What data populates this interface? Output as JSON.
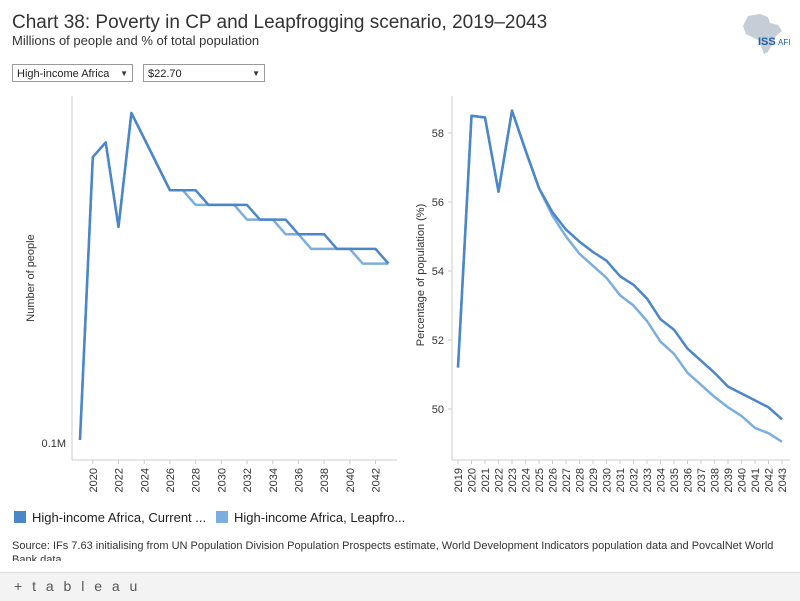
{
  "header": {
    "title": "Chart 38: Poverty in CP and Leapfrogging scenario, 2019–2043",
    "subtitle": "Millions of people and % of total population"
  },
  "logo": {
    "text": "ISS",
    "suffix": "AFI",
    "icon": "africa-map-icon"
  },
  "filters": {
    "region": {
      "value": "High-income Africa",
      "icon": "chevron-down-icon"
    },
    "threshold": {
      "value": "$22.70",
      "icon": "chevron-down-icon"
    }
  },
  "legend": {
    "items": [
      {
        "label": "High-income Africa, Current ...",
        "color": "#4a86c8"
      },
      {
        "label": "High-income Africa, Leapfro...",
        "color": "#7badde"
      }
    ]
  },
  "source": "Source: IFs 7.63 initialising from UN Population Division Population Prospects estimate, World Development Indicators population data and PovcalNet World Bank data",
  "footer": {
    "brand": "+ t a b l e a u"
  },
  "colors": {
    "current": "#4a86c8",
    "leapfrog": "#7badde",
    "axis": "#bbbbbb"
  },
  "chart_data": [
    {
      "type": "line",
      "title": "",
      "ylabel": "Number of people",
      "xlabel": "",
      "x": [
        2019,
        2020,
        2021,
        2022,
        2023,
        2024,
        2025,
        2026,
        2027,
        2028,
        2029,
        2030,
        2031,
        2032,
        2033,
        2034,
        2035,
        2036,
        2037,
        2038,
        2039,
        2040,
        2041,
        2042,
        2043
      ],
      "ytick_labels": [
        "0.1M"
      ],
      "xtick_labels": [
        "2020",
        "2022",
        "2024",
        "2026",
        "2028",
        "2030",
        "2032",
        "2034",
        "2036",
        "2038",
        "2040",
        "2042"
      ],
      "series": [
        {
          "name": "High-income Africa, Current Path",
          "values": [
            0.1,
            0.177,
            0.181,
            0.158,
            0.189,
            0.182,
            0.175,
            0.168,
            0.168,
            0.168,
            0.164,
            0.164,
            0.164,
            0.164,
            0.16,
            0.16,
            0.16,
            0.156,
            0.156,
            0.156,
            0.152,
            0.152,
            0.152,
            0.152,
            0.148
          ]
        },
        {
          "name": "High-income Africa, Leapfrogging",
          "values": [
            0.1,
            0.177,
            0.181,
            0.158,
            0.189,
            0.182,
            0.175,
            0.168,
            0.168,
            0.164,
            0.164,
            0.164,
            0.164,
            0.16,
            0.16,
            0.16,
            0.156,
            0.156,
            0.152,
            0.152,
            0.152,
            0.152,
            0.148,
            0.148,
            0.148
          ]
        }
      ]
    },
    {
      "type": "line",
      "title": "",
      "ylabel": "Percentage of population (%)",
      "xlabel": "",
      "x": [
        2019,
        2020,
        2021,
        2022,
        2023,
        2024,
        2025,
        2026,
        2027,
        2028,
        2029,
        2030,
        2031,
        2032,
        2033,
        2034,
        2035,
        2036,
        2037,
        2038,
        2039,
        2040,
        2041,
        2042,
        2043
      ],
      "ylim": [
        48.8,
        59.3
      ],
      "yticks": [
        50,
        52,
        54,
        56,
        58
      ],
      "xtick_labels": [
        "2019",
        "2020",
        "2021",
        "2022",
        "2023",
        "2024",
        "2025",
        "2026",
        "2027",
        "2028",
        "2029",
        "2030",
        "2031",
        "2032",
        "2033",
        "2034",
        "2035",
        "2036",
        "2037",
        "2038",
        "2039",
        "2040",
        "2041",
        "2042",
        "2043"
      ],
      "series": [
        {
          "name": "High-income Africa, Current Path",
          "values": [
            51.2,
            58.5,
            58.45,
            56.3,
            58.65,
            57.5,
            56.4,
            55.7,
            55.2,
            54.85,
            54.55,
            54.3,
            53.85,
            53.6,
            53.2,
            52.6,
            52.3,
            51.75,
            51.4,
            51.05,
            50.65,
            50.45,
            50.25,
            50.05,
            49.7
          ]
        },
        {
          "name": "High-income Africa, Leapfrogging",
          "values": [
            51.2,
            58.5,
            58.45,
            56.3,
            58.65,
            57.5,
            56.4,
            55.6,
            55.0,
            54.5,
            54.15,
            53.8,
            53.3,
            53.0,
            52.55,
            51.95,
            51.6,
            51.05,
            50.7,
            50.35,
            50.05,
            49.8,
            49.45,
            49.3,
            49.05
          ]
        }
      ]
    }
  ]
}
